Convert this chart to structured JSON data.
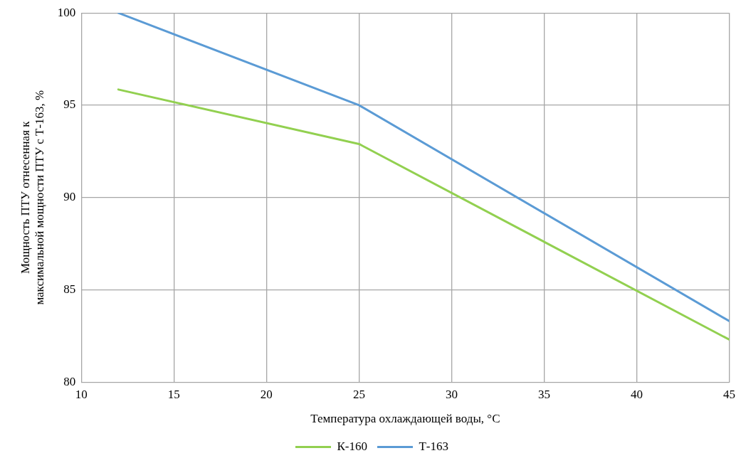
{
  "chart_data": {
    "type": "line",
    "xlabel": "Температура охлаждающей воды, °С",
    "ylabel": "Мощность ПТУ отнесенная к максимальной мощности ПТУ с Т-163, %",
    "series": [
      {
        "name": "К-160",
        "color": "#92d050",
        "x": [
          12,
          25,
          45
        ],
        "values": [
          95.85,
          92.9,
          82.3
        ]
      },
      {
        "name": "Т-163",
        "color": "#5b9bd5",
        "x": [
          12,
          25,
          45
        ],
        "values": [
          100,
          95,
          83.3
        ]
      }
    ],
    "xlim": [
      10,
      45
    ],
    "xticks": [
      10,
      15,
      20,
      25,
      30,
      35,
      40,
      45
    ],
    "ylim": [
      80,
      100
    ],
    "yticks": [
      80,
      85,
      90,
      95,
      100
    ],
    "grid": true,
    "legend": "bottom",
    "marker": "none",
    "line_style": "solid"
  }
}
